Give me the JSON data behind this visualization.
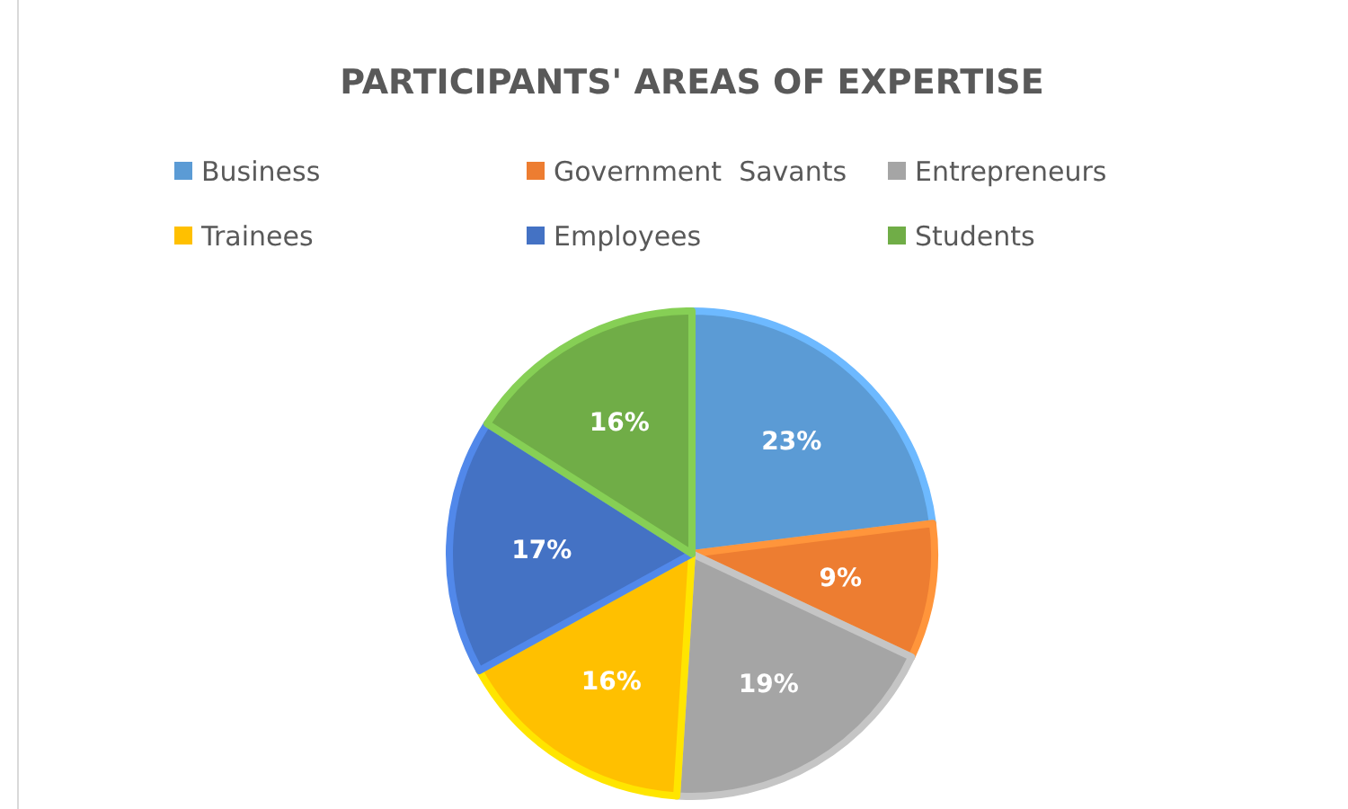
{
  "chart_data": {
    "type": "pie",
    "title": "PARTICIPANTS' AREAS OF EXPERTISE",
    "categories": [
      "Business",
      "Government  Savants",
      "Entrepreneurs",
      "Trainees",
      "Employees",
      "Students"
    ],
    "values": [
      23,
      9,
      19,
      16,
      17,
      16
    ],
    "colors": [
      "#5b9bd5",
      "#ed7d31",
      "#a5a5a5",
      "#ffc000",
      "#4472c4",
      "#70ad47"
    ],
    "value_labels": [
      "23%",
      "9%",
      "19%",
      "16%",
      "17%",
      "16%"
    ],
    "legend": "top"
  }
}
